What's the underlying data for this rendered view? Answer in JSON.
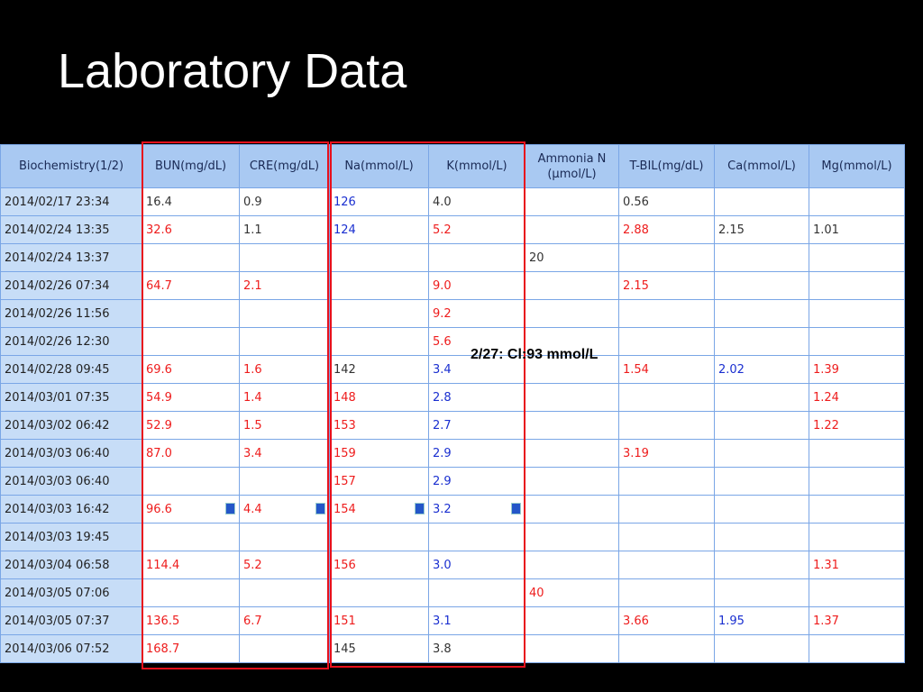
{
  "title": "Laboratory Data",
  "table": {
    "headers": [
      "Biochemistry(1/2)",
      "BUN(mg/dL)",
      "CRE(mg/dL)",
      "Na(mmol/L)",
      "K(mmol/L)",
      "Ammonia N\n(μmol/L)",
      "T-BIL(mg/dL)",
      "Ca(mmol/L)",
      "Mg(mmol/L)"
    ],
    "rows": [
      [
        "2014/02/17 23:34",
        "16.4",
        "0.9",
        "126",
        "4.0",
        null,
        "0.56",
        null,
        null
      ],
      [
        "2014/02/24 13:35",
        "32.6",
        "1.1",
        "124",
        "5.2",
        null,
        "2.88",
        "2.15",
        "1.01"
      ],
      [
        "2014/02/24 13:37",
        null,
        null,
        null,
        null,
        "20",
        null,
        null,
        null
      ],
      [
        "2014/02/26 07:34",
        "64.7",
        "2.1",
        null,
        "9.0",
        null,
        "2.15",
        null,
        null
      ],
      [
        "2014/02/26 11:56",
        null,
        null,
        null,
        "9.2",
        null,
        null,
        null,
        null
      ],
      [
        "2014/02/26 12:30",
        null,
        null,
        null,
        "5.6",
        null,
        null,
        null,
        null
      ],
      [
        "2014/02/28 09:45",
        "69.6",
        "1.6",
        "142",
        "3.4",
        null,
        "1.54",
        "2.02",
        "1.39"
      ],
      [
        "2014/03/01 07:35",
        "54.9",
        "1.4",
        "148",
        "2.8",
        null,
        null,
        null,
        "1.24"
      ],
      [
        "2014/03/02 06:42",
        "52.9",
        "1.5",
        "153",
        "2.7",
        null,
        null,
        null,
        "1.22"
      ],
      [
        "2014/03/03 06:40",
        "87.0",
        "3.4",
        "159",
        "2.9",
        null,
        "3.19",
        null,
        null
      ],
      [
        "2014/03/03 06:40",
        null,
        null,
        "157",
        "2.9",
        null,
        null,
        null,
        null
      ],
      [
        "2014/03/03 16:42",
        "96.6",
        "4.4",
        "154",
        "3.2",
        null,
        null,
        null,
        null
      ],
      [
        "2014/03/03 19:45",
        null,
        null,
        null,
        null,
        null,
        null,
        null,
        null
      ],
      [
        "2014/03/04 06:58",
        "114.4",
        "5.2",
        "156",
        "3.0",
        null,
        null,
        null,
        "1.31"
      ],
      [
        "2014/03/05 07:06",
        null,
        null,
        null,
        null,
        "40",
        null,
        null,
        null
      ],
      [
        "2014/03/05 07:37",
        "136.5",
        "6.7",
        "151",
        "3.1",
        null,
        "3.66",
        "1.95",
        "1.37"
      ],
      [
        "2014/03/06 07:52",
        "168.7",
        null,
        "145",
        "3.8",
        null,
        null,
        null,
        null
      ]
    ],
    "cell_colors": [
      [
        "#222222",
        "#333333",
        "#333333",
        "#1a2fd0",
        "#333333",
        null,
        "#333333",
        null,
        null
      ],
      [
        "#222222",
        "#ee1c1c",
        "#333333",
        "#1a2fd0",
        "#ee1c1c",
        null,
        "#ee1c1c",
        "#333333",
        "#333333"
      ],
      [
        "#222222",
        null,
        null,
        null,
        null,
        "#333333",
        null,
        null,
        null
      ],
      [
        "#222222",
        "#ee1c1c",
        "#ee1c1c",
        null,
        "#ee1c1c",
        null,
        "#ee1c1c",
        null,
        null
      ],
      [
        "#222222",
        null,
        null,
        null,
        "#ee1c1c",
        null,
        null,
        null,
        null
      ],
      [
        "#222222",
        null,
        null,
        null,
        "#ee1c1c",
        null,
        null,
        null,
        null
      ],
      [
        "#222222",
        "#ee1c1c",
        "#ee1c1c",
        "#333333",
        "#1a2fd0",
        null,
        "#ee1c1c",
        "#1a2fd0",
        "#ee1c1c"
      ],
      [
        "#222222",
        "#ee1c1c",
        "#ee1c1c",
        "#ee1c1c",
        "#1a2fd0",
        null,
        null,
        null,
        "#ee1c1c"
      ],
      [
        "#222222",
        "#ee1c1c",
        "#ee1c1c",
        "#ee1c1c",
        "#1a2fd0",
        null,
        null,
        null,
        "#ee1c1c"
      ],
      [
        "#222222",
        "#ee1c1c",
        "#ee1c1c",
        "#ee1c1c",
        "#1a2fd0",
        null,
        "#ee1c1c",
        null,
        null
      ],
      [
        "#222222",
        null,
        null,
        "#ee1c1c",
        "#1a2fd0",
        null,
        null,
        null,
        null
      ],
      [
        "#222222",
        "#ee1c1c",
        "#ee1c1c",
        "#ee1c1c",
        "#1a2fd0",
        null,
        null,
        null,
        null
      ],
      [
        "#222222",
        null,
        null,
        null,
        null,
        null,
        null,
        null,
        null
      ],
      [
        "#222222",
        "#ee1c1c",
        "#ee1c1c",
        "#ee1c1c",
        "#1a2fd0",
        null,
        null,
        null,
        "#ee1c1c"
      ],
      [
        "#222222",
        null,
        null,
        null,
        null,
        "#ee1c1c",
        null,
        null,
        null
      ],
      [
        "#222222",
        "#ee1c1c",
        "#ee1c1c",
        "#ee1c1c",
        "#1a2fd0",
        null,
        "#ee1c1c",
        "#1a2fd0",
        "#ee1c1c"
      ],
      [
        "#222222",
        "#ee1c1c",
        null,
        "#333333",
        "#333333",
        null,
        null,
        null,
        null
      ]
    ]
  },
  "annotation": "2/27: Cl:93 mmol/L"
}
